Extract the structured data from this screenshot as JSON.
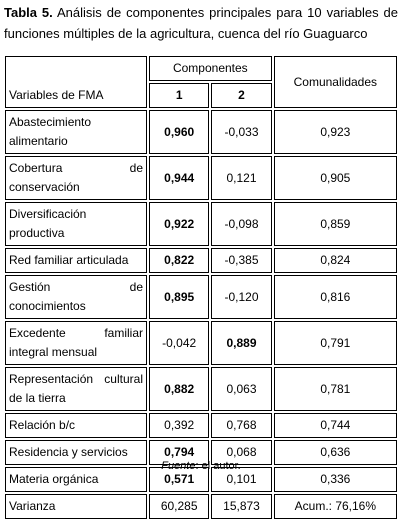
{
  "caption": {
    "label": "Tabla 5.",
    "text": "Análisis de componentes principales para 10 variables de funciones múltiples de la agricultura, cuenca del río Guaguarco"
  },
  "table": {
    "header": {
      "variables": "Variables de FMA",
      "components": "Componentes",
      "c1": "1",
      "c2": "2",
      "communalities": "Comunalidades"
    },
    "rows": [
      [
        "Abastecimiento alimentario",
        "0,960",
        "-0,033",
        "0,923"
      ],
      [
        "Cobertura de conservación",
        "0,944",
        "0,121",
        "0,905"
      ],
      [
        "Diversificación productiva",
        "0,922",
        "-0,098",
        "0,859"
      ],
      [
        "Red familiar articulada",
        "0,822",
        "-0,385",
        "0,824"
      ],
      [
        "Gestión de conocimientos",
        "0,895",
        "-0,120",
        "0,816"
      ],
      [
        "Excedente familiar integral mensual",
        "-0,042",
        "0,889",
        "0,791"
      ],
      [
        "Representación cultural de la tierra",
        "0,882",
        "0,063",
        "0,781"
      ],
      [
        "Relación b/c",
        "0,392",
        "0,768",
        "0,744"
      ],
      [
        "Residencia y servicios",
        "0,794",
        "0,068",
        "0,636"
      ],
      [
        "Materia orgánica",
        "0,571",
        "0,101",
        "0,336"
      ],
      [
        "Varianza",
        "60,285",
        "15,873",
        "Acum.: 76,16%"
      ]
    ]
  },
  "source": {
    "label": "Fuente",
    "text": ": el autor."
  }
}
